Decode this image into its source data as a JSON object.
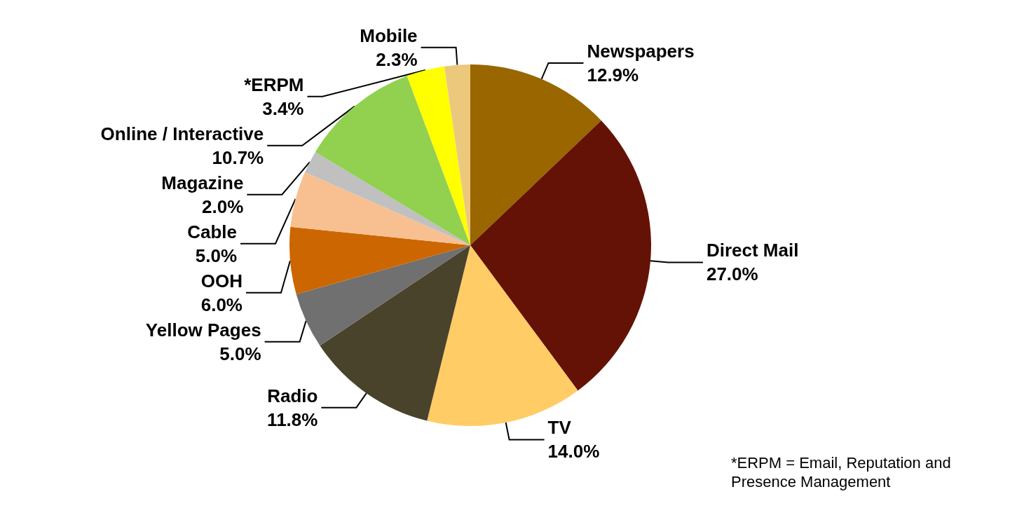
{
  "chart_data": {
    "type": "pie",
    "categories": [
      "Newspapers",
      "Direct Mail",
      "TV",
      "Radio",
      "Yellow Pages",
      "OOH",
      "Cable",
      "Magazine",
      "Online / Interactive",
      "*ERPM",
      "Mobile"
    ],
    "values": [
      12.9,
      27.0,
      14.0,
      11.8,
      5.0,
      6.0,
      5.0,
      2.0,
      10.7,
      3.4,
      2.3
    ],
    "value_labels": [
      "12.9%",
      "27.0%",
      "14.0%",
      "11.8%",
      "5.0%",
      "6.0%",
      "5.0%",
      "2.0%",
      "10.7%",
      "3.4%",
      "2.3%"
    ],
    "colors": [
      "#996600",
      "#641205",
      "#ffcc66",
      "#4a432b",
      "#707070",
      "#cc6600",
      "#f8c090",
      "#c0c0c0",
      "#92d050",
      "#ffff00",
      "#ecc87c"
    ],
    "legend": false,
    "annotations": [
      "*ERPM = Email, Reputation and Presence Management"
    ]
  }
}
